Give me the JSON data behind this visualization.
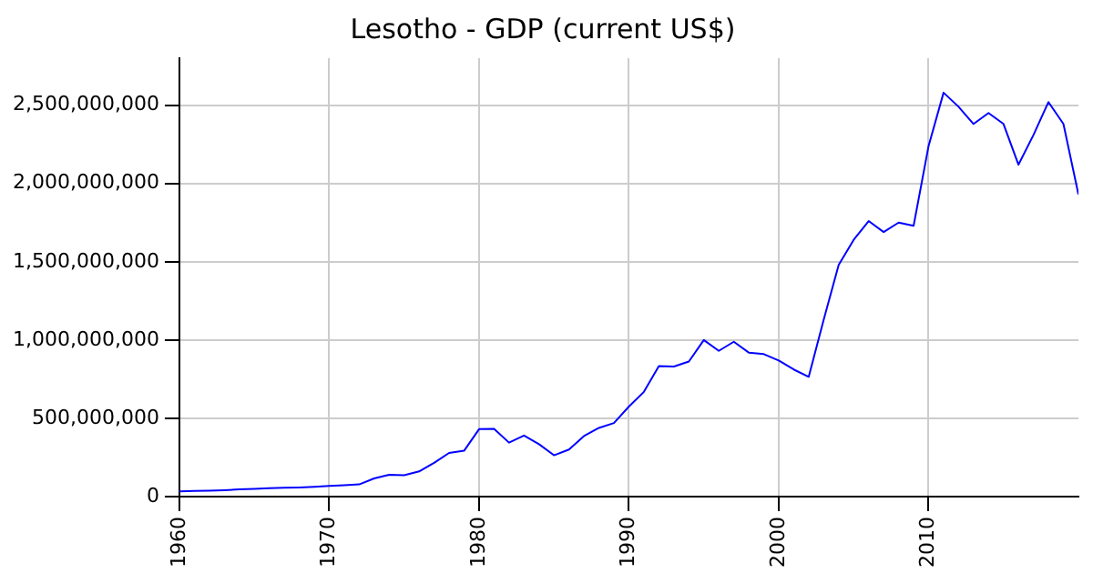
{
  "chart_data": {
    "type": "line",
    "title": "Lesotho - GDP (current US$)",
    "x": [
      1960,
      1961,
      1962,
      1963,
      1964,
      1965,
      1966,
      1967,
      1968,
      1969,
      1970,
      1971,
      1972,
      1973,
      1974,
      1975,
      1976,
      1977,
      1978,
      1979,
      1980,
      1981,
      1982,
      1983,
      1984,
      1985,
      1986,
      1987,
      1988,
      1989,
      1990,
      1991,
      1992,
      1993,
      1994,
      1995,
      1996,
      1997,
      1998,
      1999,
      2000,
      2001,
      2002,
      2003,
      2004,
      2005,
      2006,
      2007,
      2008,
      2009,
      2010,
      2011,
      2012,
      2013,
      2014,
      2015,
      2016,
      2017,
      2018,
      2019,
      2020
    ],
    "series": [
      {
        "color": "#0000ff",
        "values": [
          34000000,
          36000000,
          38000000,
          41000000,
          46000000,
          50000000,
          54000000,
          56000000,
          58000000,
          62000000,
          68000000,
          72000000,
          78000000,
          116000000,
          140000000,
          137000000,
          161000000,
          216000000,
          279000000,
          293000000,
          431000000,
          433000000,
          345000000,
          390000000,
          335000000,
          264000000,
          301000000,
          387000000,
          439000000,
          470000000,
          575000000,
          669000000,
          833000000,
          831000000,
          863000000,
          1000000000,
          931000000,
          989000000,
          920000000,
          910000000,
          869000000,
          812000000,
          765000000,
          1130000000,
          1480000000,
          1640000000,
          1760000000,
          1690000000,
          1750000000,
          1730000000,
          2240000000,
          2580000000,
          2490000000,
          2380000000,
          2450000000,
          2380000000,
          2120000000,
          2310000000,
          2520000000,
          2380000000,
          1930000000
        ]
      }
    ],
    "xlim": [
      1960,
      2020
    ],
    "xticks": [
      1960,
      1970,
      1980,
      1990,
      2000,
      2010
    ],
    "ylim": [
      0,
      2800000000
    ],
    "yticks": [
      {
        "value": 0,
        "label": "0"
      },
      {
        "value": 500000000,
        "label": "500,000,000"
      },
      {
        "value": 1000000000,
        "label": "1,000,000,000"
      },
      {
        "value": 1500000000,
        "label": "1,500,000,000"
      },
      {
        "value": 2000000000,
        "label": "2,000,000,000"
      },
      {
        "value": 2500000000,
        "label": "2,500,000,000"
      }
    ],
    "grid": true,
    "legend": false,
    "marker": "none",
    "line_style": "solid"
  }
}
